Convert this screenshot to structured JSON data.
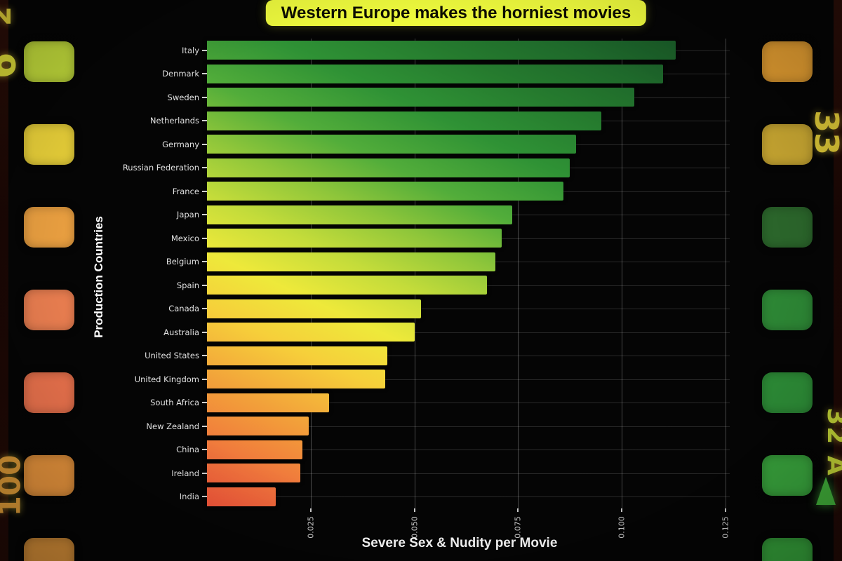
{
  "banner": {
    "text": "Western Europe makes the horniest movies"
  },
  "chart_data": {
    "type": "bar",
    "orientation": "horizontal",
    "title": "Western Europe makes the horniest movies",
    "xlabel": "Severe Sex & Nudity per Movie",
    "ylabel": "Production Countries",
    "categories": [
      "Italy",
      "Denmark",
      "Sweden",
      "Netherlands",
      "Germany",
      "Russian Federation",
      "France",
      "Japan",
      "Mexico",
      "Belgium",
      "Spain",
      "Canada",
      "Australia",
      "United States",
      "United Kingdom",
      "South Africa",
      "New Zealand",
      "China",
      "Ireland",
      "India"
    ],
    "values": [
      0.113,
      0.11,
      0.103,
      0.095,
      0.089,
      0.0875,
      0.086,
      0.0735,
      0.071,
      0.0695,
      0.0675,
      0.0515,
      0.05,
      0.0435,
      0.043,
      0.0295,
      0.0245,
      0.023,
      0.0225,
      0.0165
    ],
    "xticks": [
      "0.025",
      "0.050",
      "0.075",
      "0.100",
      "0.125"
    ],
    "xtick_values": [
      0.025,
      0.05,
      0.075,
      0.1,
      0.125
    ],
    "xlim": [
      0,
      0.126
    ],
    "grid": true,
    "legend_position": "none",
    "bar_gradient": [
      "#f4543a",
      "#f2a03a",
      "#eee93a",
      "#8fc63a",
      "#2f9235",
      "#175526"
    ]
  },
  "film_strip": {
    "left_marks": [
      {
        "text": "2",
        "color": "#e9d83b"
      },
      {
        "text": "6",
        "color": "#e4e23a"
      },
      {
        "text": "100",
        "color": "#e8a23a"
      }
    ],
    "right_marks": [
      {
        "text": "33",
        "color": "#e8d23a"
      },
      {
        "text": "32 A",
        "color": "#cfe23a"
      }
    ],
    "left_hole_colors": [
      "#bfd83a",
      "#edd43a",
      "#efa342",
      "#ef8152",
      "#ee744e",
      "#e6933c",
      "#cf8a36"
    ],
    "right_hole_colors": [
      "#de9a30",
      "#caa832",
      "#2c682c",
      "#2e8a36",
      "#2e9038",
      "#3aa83e",
      "#35a03a"
    ],
    "arrow": {
      "shape": "triangle-up",
      "color": "#41b03a"
    }
  },
  "colors": {
    "background": "#050505",
    "title_bg": "#edf93d",
    "title_text": "#0d0d00",
    "grid": "#ffffff",
    "tick_text": "#d5d5d5",
    "axis_title_text": "#ffffff"
  }
}
